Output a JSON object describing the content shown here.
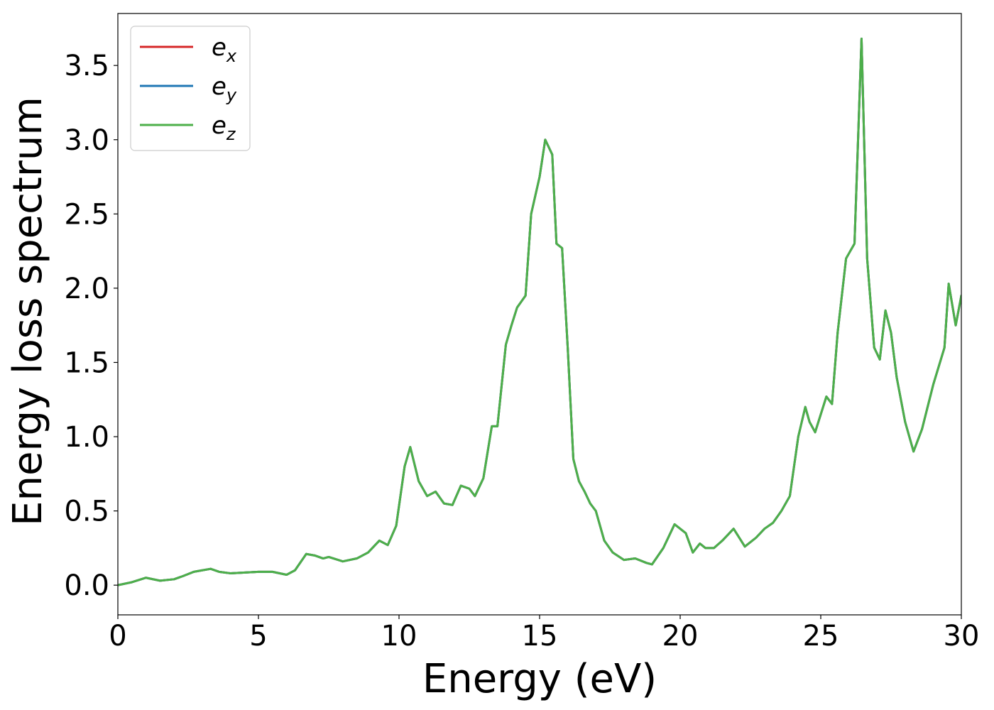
{
  "chart_data": {
    "type": "line",
    "title": "",
    "xlabel": "Energy (eV)",
    "ylabel": "Energy loss spectrum",
    "xlim": [
      0,
      30
    ],
    "ylim": [
      -0.2,
      3.85
    ],
    "xticks": [
      0,
      5,
      10,
      15,
      20,
      25,
      30
    ],
    "xtick_labels": [
      "0",
      "5",
      "10",
      "15",
      "20",
      "25",
      "30"
    ],
    "yticks": [
      0.0,
      0.5,
      1.0,
      1.5,
      2.0,
      2.5,
      3.0,
      3.5
    ],
    "ytick_labels": [
      "0.0",
      "0.5",
      "1.0",
      "1.5",
      "2.0",
      "2.5",
      "3.0",
      "3.5"
    ],
    "grid": false,
    "legend_position": "top-left",
    "x": [
      0,
      0.5,
      1.0,
      1.5,
      2.0,
      2.3,
      2.7,
      3.0,
      3.3,
      3.6,
      4.0,
      5.0,
      5.5,
      6.0,
      6.3,
      6.7,
      7.0,
      7.3,
      7.5,
      8.0,
      8.5,
      8.9,
      9.3,
      9.6,
      9.9,
      10.2,
      10.4,
      10.7,
      11.0,
      11.3,
      11.6,
      11.9,
      12.2,
      12.5,
      12.7,
      13.0,
      13.3,
      13.5,
      13.8,
      14.0,
      14.2,
      14.5,
      14.7,
      15.0,
      15.2,
      15.45,
      15.6,
      15.8,
      16.0,
      16.2,
      16.4,
      16.6,
      16.8,
      17.0,
      17.3,
      17.6,
      18.0,
      18.4,
      18.8,
      19.0,
      19.4,
      19.8,
      20.2,
      20.45,
      20.7,
      20.9,
      21.2,
      21.5,
      21.9,
      22.3,
      22.7,
      23.0,
      23.3,
      23.6,
      23.9,
      24.2,
      24.45,
      24.6,
      24.8,
      25.2,
      25.4,
      25.6,
      25.9,
      26.2,
      26.45,
      26.65,
      26.9,
      27.1,
      27.3,
      27.5,
      27.7,
      28.0,
      28.3,
      28.6,
      29.0,
      29.4,
      29.55,
      29.8,
      30.0
    ],
    "series": [
      {
        "name": "e_x",
        "color": "#d62728",
        "values": [
          0.0,
          0.02,
          0.05,
          0.03,
          0.04,
          0.06,
          0.09,
          0.1,
          0.11,
          0.09,
          0.08,
          0.09,
          0.09,
          0.07,
          0.1,
          0.21,
          0.2,
          0.18,
          0.19,
          0.16,
          0.18,
          0.22,
          0.3,
          0.27,
          0.4,
          0.8,
          0.93,
          0.7,
          0.6,
          0.63,
          0.55,
          0.54,
          0.67,
          0.65,
          0.6,
          0.72,
          1.07,
          1.07,
          1.62,
          1.75,
          1.87,
          1.95,
          2.5,
          2.75,
          3.0,
          2.9,
          2.3,
          2.27,
          1.6,
          0.85,
          0.7,
          0.63,
          0.55,
          0.5,
          0.3,
          0.22,
          0.17,
          0.18,
          0.15,
          0.14,
          0.25,
          0.41,
          0.35,
          0.22,
          0.28,
          0.25,
          0.25,
          0.3,
          0.38,
          0.26,
          0.32,
          0.38,
          0.42,
          0.5,
          0.6,
          1.0,
          1.2,
          1.1,
          1.03,
          1.27,
          1.22,
          1.7,
          2.2,
          2.3,
          3.68,
          2.2,
          1.6,
          1.52,
          1.85,
          1.7,
          1.4,
          1.1,
          0.9,
          1.05,
          1.35,
          1.6,
          2.03,
          1.75,
          1.95
        ]
      },
      {
        "name": "e_y",
        "color": "#1f77b4",
        "values": [
          0.0,
          0.02,
          0.05,
          0.03,
          0.04,
          0.06,
          0.09,
          0.1,
          0.11,
          0.09,
          0.08,
          0.09,
          0.09,
          0.07,
          0.1,
          0.21,
          0.2,
          0.18,
          0.19,
          0.16,
          0.18,
          0.22,
          0.3,
          0.27,
          0.4,
          0.8,
          0.93,
          0.7,
          0.6,
          0.63,
          0.55,
          0.54,
          0.67,
          0.65,
          0.6,
          0.72,
          1.07,
          1.07,
          1.62,
          1.75,
          1.87,
          1.95,
          2.5,
          2.75,
          3.0,
          2.9,
          2.3,
          2.27,
          1.6,
          0.85,
          0.7,
          0.63,
          0.55,
          0.5,
          0.3,
          0.22,
          0.17,
          0.18,
          0.15,
          0.14,
          0.25,
          0.41,
          0.35,
          0.22,
          0.28,
          0.25,
          0.25,
          0.3,
          0.38,
          0.26,
          0.32,
          0.38,
          0.42,
          0.5,
          0.6,
          1.0,
          1.2,
          1.1,
          1.03,
          1.27,
          1.22,
          1.7,
          2.2,
          2.3,
          3.68,
          2.2,
          1.6,
          1.52,
          1.85,
          1.7,
          1.4,
          1.1,
          0.9,
          1.05,
          1.35,
          1.6,
          2.03,
          1.75,
          1.95
        ]
      },
      {
        "name": "e_z",
        "color": "#4daf4a",
        "values": [
          0.0,
          0.02,
          0.05,
          0.03,
          0.04,
          0.06,
          0.09,
          0.1,
          0.11,
          0.09,
          0.08,
          0.09,
          0.09,
          0.07,
          0.1,
          0.21,
          0.2,
          0.18,
          0.19,
          0.16,
          0.18,
          0.22,
          0.3,
          0.27,
          0.4,
          0.8,
          0.93,
          0.7,
          0.6,
          0.63,
          0.55,
          0.54,
          0.67,
          0.65,
          0.6,
          0.72,
          1.07,
          1.07,
          1.62,
          1.75,
          1.87,
          1.95,
          2.5,
          2.75,
          3.0,
          2.9,
          2.3,
          2.27,
          1.6,
          0.85,
          0.7,
          0.63,
          0.55,
          0.5,
          0.3,
          0.22,
          0.17,
          0.18,
          0.15,
          0.14,
          0.25,
          0.41,
          0.35,
          0.22,
          0.28,
          0.25,
          0.25,
          0.3,
          0.38,
          0.26,
          0.32,
          0.38,
          0.42,
          0.5,
          0.6,
          1.0,
          1.2,
          1.1,
          1.03,
          1.27,
          1.22,
          1.7,
          2.2,
          2.3,
          3.68,
          2.2,
          1.6,
          1.52,
          1.85,
          1.7,
          1.4,
          1.1,
          0.9,
          1.05,
          1.35,
          1.6,
          2.03,
          1.75,
          1.95
        ]
      }
    ],
    "legend": [
      {
        "base": "e",
        "sub": "x",
        "color": "#d62728"
      },
      {
        "base": "e",
        "sub": "y",
        "color": "#1f77b4"
      },
      {
        "base": "e",
        "sub": "z",
        "color": "#4daf4a"
      }
    ]
  }
}
